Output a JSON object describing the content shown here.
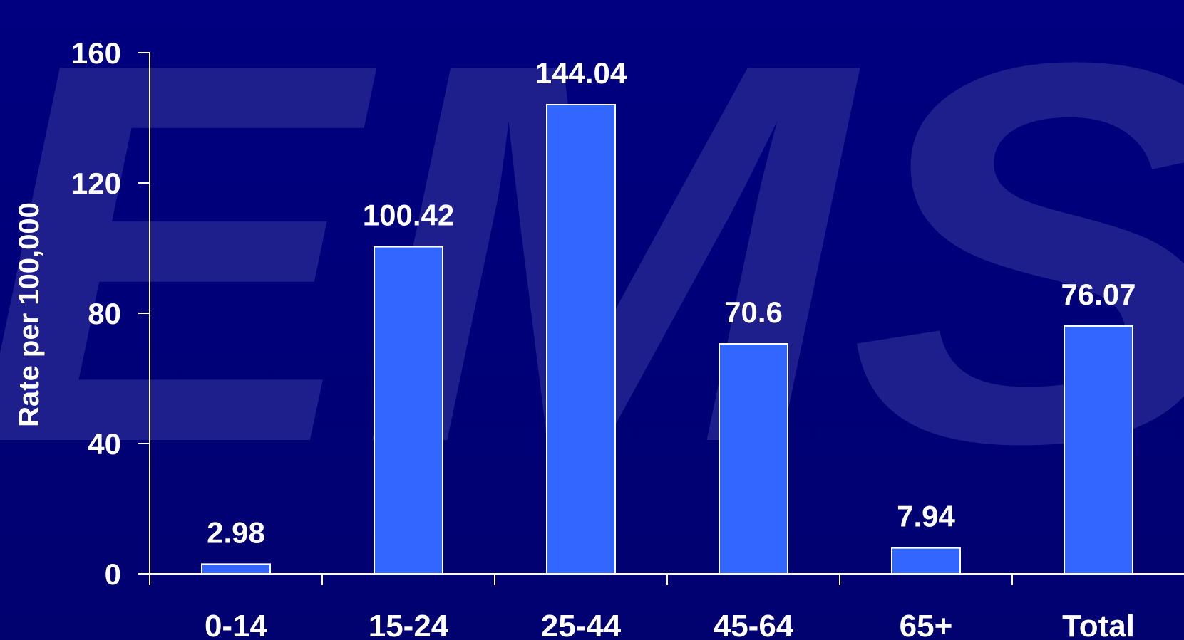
{
  "background": {
    "watermark_text": "EMS",
    "colors": {
      "background": "#000080",
      "watermark": "#1e1e8c"
    }
  },
  "chart_data": {
    "type": "bar",
    "categories": [
      "0-14",
      "15-24",
      "25-44",
      "45-64",
      "65+",
      "Total"
    ],
    "values": [
      2.98,
      100.42,
      144.04,
      70.6,
      7.94,
      76.07
    ],
    "data_labels": [
      "2.98",
      "100.42",
      "144.04",
      "70.6",
      "7.94",
      "76.07"
    ],
    "title": "",
    "xlabel": "",
    "ylabel": "Rate per 100,000",
    "ylim": [
      0,
      160
    ],
    "yticks": [
      0,
      40,
      80,
      120,
      160
    ],
    "grid": false,
    "legend": "none",
    "colors": {
      "bar_fill": "#3366ff",
      "bar_stroke": "#ffffff",
      "axis": "#ffffff",
      "text": "#ffffff"
    }
  }
}
